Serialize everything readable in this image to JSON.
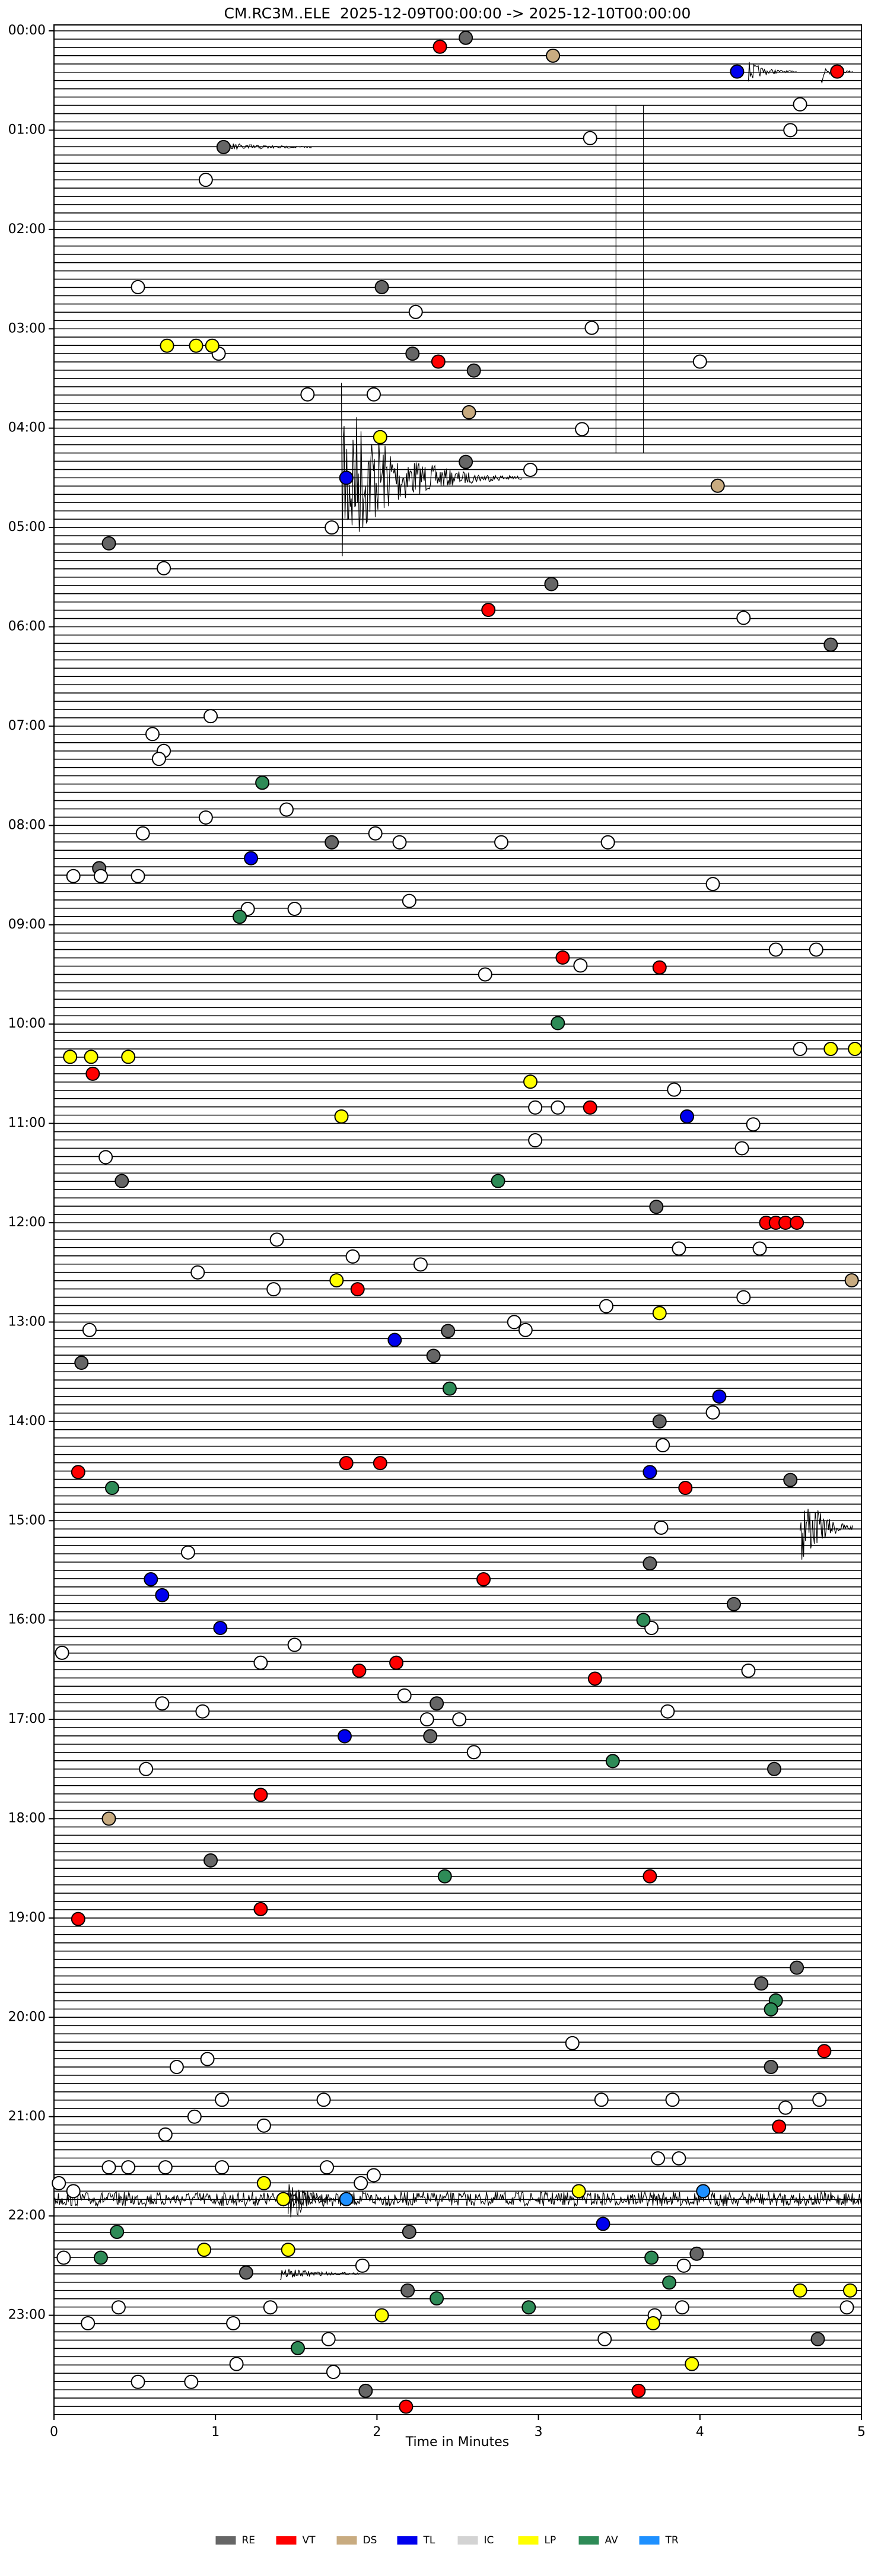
{
  "chart_data": {
    "type": "helicorder",
    "title": "CM.RC3M..ELE  2025-12-09T00:00:00 -> 2025-12-10T00:00:00",
    "xlabel": "Time in Minutes",
    "xlim": [
      0,
      5
    ],
    "xticks": [
      0,
      1,
      2,
      3,
      4,
      5
    ],
    "ylim": [
      24,
      0
    ],
    "yticks": [
      {
        "value": 0,
        "label": "00:00"
      },
      {
        "value": 1,
        "label": "01:00"
      },
      {
        "value": 2,
        "label": "02:00"
      },
      {
        "value": 3,
        "label": "03:00"
      },
      {
        "value": 4,
        "label": "04:00"
      },
      {
        "value": 5,
        "label": "05:00"
      },
      {
        "value": 6,
        "label": "06:00"
      },
      {
        "value": 7,
        "label": "07:00"
      },
      {
        "value": 8,
        "label": "08:00"
      },
      {
        "value": 9,
        "label": "09:00"
      },
      {
        "value": 10,
        "label": "10:00"
      },
      {
        "value": 11,
        "label": "11:00"
      },
      {
        "value": 12,
        "label": "12:00"
      },
      {
        "value": 13,
        "label": "13:00"
      },
      {
        "value": 14,
        "label": "14:00"
      },
      {
        "value": 15,
        "label": "15:00"
      },
      {
        "value": 16,
        "label": "16:00"
      },
      {
        "value": 17,
        "label": "17:00"
      },
      {
        "value": 18,
        "label": "18:00"
      },
      {
        "value": 19,
        "label": "19:00"
      },
      {
        "value": 20,
        "label": "20:00"
      },
      {
        "value": 21,
        "label": "21:00"
      },
      {
        "value": 22,
        "label": "22:00"
      },
      {
        "value": 23,
        "label": "23:00"
      }
    ],
    "legend": "bottom",
    "series": [
      {
        "name": "RE",
        "color": "#666666",
        "x": [
          2.55,
          1.05,
          2.03,
          2.22,
          2.6,
          2.55,
          0.34,
          3.08,
          4.81,
          1.72,
          0.28,
          0.42,
          3.73,
          2.44,
          2.35,
          0.17,
          3.75,
          4.56,
          3.69,
          4.21,
          2.37,
          2.33,
          4.46,
          0.97,
          4.6,
          4.38,
          4.44,
          2.19,
          1.19,
          3.98,
          4.73,
          1.93,
          2.2
        ],
        "y": [
          0.07,
          1.17,
          2.58,
          3.25,
          3.42,
          4.34,
          5.16,
          5.57,
          6.18,
          8.17,
          8.43,
          11.58,
          11.84,
          13.09,
          13.34,
          13.41,
          14.0,
          14.59,
          15.43,
          15.84,
          16.84,
          17.17,
          17.5,
          18.42,
          19.5,
          19.66,
          20.5,
          22.75,
          22.57,
          22.38,
          23.24,
          23.76,
          22.16
        ]
      },
      {
        "name": "VT",
        "color": "#ff0000",
        "x": [
          2.39,
          4.85,
          2.38,
          2.69,
          3.15,
          3.75,
          0.24,
          3.32,
          4.41,
          4.47,
          4.53,
          4.6,
          1.88,
          1.81,
          2.02,
          0.15,
          3.91,
          2.66,
          2.12,
          1.89,
          3.35,
          1.28,
          1.28,
          0.15,
          3.69,
          4.77,
          4.49,
          2.18,
          3.62
        ],
        "y": [
          0.16,
          0.41,
          3.33,
          5.83,
          9.33,
          9.43,
          10.5,
          10.84,
          12.0,
          12.0,
          12.0,
          12.0,
          12.67,
          14.42,
          14.42,
          14.51,
          14.67,
          15.59,
          16.43,
          16.51,
          16.59,
          17.76,
          18.91,
          19.01,
          18.58,
          20.34,
          21.1,
          23.92,
          23.76
        ]
      },
      {
        "name": "DS",
        "color": "#c8ab80",
        "x": [
          3.09,
          2.57,
          4.11,
          4.94,
          0.34
        ],
        "y": [
          0.25,
          3.84,
          4.58,
          12.58,
          18.0
        ]
      },
      {
        "name": "TL",
        "color": "#0000ee",
        "x": [
          4.23,
          1.81,
          1.22,
          3.92,
          2.11,
          4.12,
          3.69,
          0.6,
          0.67,
          1.03,
          1.8,
          3.4
        ],
        "y": [
          0.41,
          4.5,
          8.33,
          10.93,
          13.18,
          13.75,
          14.51,
          15.59,
          15.75,
          16.08,
          17.17,
          22.08
        ]
      },
      {
        "name": "IC",
        "color": "#ffffff",
        "x": [
          4.62,
          4.56,
          3.32,
          0.94,
          0.52,
          2.24,
          3.33,
          1.02,
          4.0,
          1.57,
          1.98,
          3.27,
          2.95,
          1.72,
          0.68,
          4.27,
          0.97,
          0.61,
          0.68,
          0.65,
          1.44,
          0.94,
          0.55,
          1.99,
          2.14,
          2.77,
          3.43,
          0.12,
          0.29,
          0.52,
          4.08,
          2.2,
          1.2,
          1.49,
          4.47,
          4.72,
          3.26,
          2.67,
          4.62,
          3.84,
          2.98,
          3.12,
          4.33,
          2.98,
          4.26,
          0.32,
          1.38,
          3.87,
          4.37,
          1.85,
          2.27,
          0.89,
          1.36,
          4.27,
          3.42,
          2.85,
          2.92,
          0.22,
          4.08,
          3.77,
          3.76,
          0.83,
          3.7,
          0.05,
          1.49,
          1.28,
          4.3,
          2.17,
          0.67,
          0.92,
          3.8,
          2.31,
          2.51,
          2.6,
          0.57,
          3.21,
          0.95,
          0.76,
          1.04,
          1.67,
          3.39,
          3.83,
          4.74,
          4.53,
          0.87,
          1.3,
          0.69,
          3.74,
          3.87,
          0.34,
          0.46,
          0.69,
          1.04,
          1.69,
          1.98,
          0.03,
          1.9,
          0.12,
          0.06,
          1.91,
          3.9,
          0.4,
          1.34,
          3.89,
          4.91,
          1.11,
          0.21,
          3.72,
          1.7,
          3.41,
          1.13,
          1.73,
          0.52,
          0.85
        ],
        "y": [
          0.74,
          1.0,
          1.08,
          1.5,
          2.58,
          2.83,
          2.99,
          3.25,
          3.33,
          3.66,
          3.66,
          4.01,
          4.42,
          5.0,
          5.41,
          5.91,
          6.9,
          7.08,
          7.25,
          7.33,
          7.84,
          7.92,
          8.08,
          8.08,
          8.17,
          8.17,
          8.17,
          8.51,
          8.51,
          8.51,
          8.59,
          8.76,
          8.84,
          8.84,
          9.25,
          9.25,
          9.41,
          9.5,
          10.25,
          10.66,
          10.84,
          10.84,
          11.01,
          11.17,
          11.25,
          11.34,
          12.17,
          12.26,
          12.26,
          12.34,
          12.42,
          12.5,
          12.67,
          12.75,
          12.84,
          13.0,
          13.08,
          13.08,
          13.91,
          14.24,
          15.07,
          15.32,
          16.08,
          16.33,
          16.25,
          16.43,
          16.51,
          16.76,
          16.84,
          16.92,
          16.92,
          17.0,
          17.0,
          17.33,
          17.5,
          20.26,
          20.42,
          20.5,
          20.83,
          20.83,
          20.83,
          20.83,
          20.83,
          20.91,
          21.0,
          21.09,
          21.18,
          21.42,
          21.42,
          21.51,
          21.51,
          21.51,
          21.51,
          21.51,
          21.59,
          21.67,
          21.67,
          21.75,
          22.42,
          22.5,
          22.5,
          22.92,
          22.92,
          22.92,
          22.92,
          23.08,
          23.08,
          23.0,
          23.24,
          23.24,
          23.49,
          23.57,
          23.67,
          23.67
        ]
      },
      {
        "name": "LP",
        "color": "#ffff00",
        "x": [
          0.7,
          0.88,
          0.98,
          2.02,
          0.1,
          0.23,
          0.46,
          4.81,
          4.96,
          2.95,
          1.78,
          1.75,
          3.75,
          1.3,
          1.42,
          3.25,
          0.93,
          1.45,
          4.62,
          4.93,
          2.03,
          3.71,
          3.95
        ],
        "y": [
          3.17,
          3.17,
          3.17,
          4.09,
          10.33,
          10.33,
          10.33,
          10.25,
          10.25,
          10.58,
          10.93,
          12.58,
          12.91,
          21.67,
          21.83,
          21.75,
          22.34,
          22.34,
          22.75,
          22.75,
          23.0,
          23.08,
          23.49
        ]
      },
      {
        "name": "AV",
        "color": "#2e8b57",
        "x": [
          1.29,
          1.15,
          3.12,
          2.75,
          2.45,
          0.36,
          3.65,
          3.46,
          2.42,
          4.47,
          4.44,
          0.39,
          0.29,
          3.7,
          3.81,
          2.37,
          2.94,
          1.51
        ],
        "y": [
          7.57,
          8.92,
          9.99,
          11.58,
          13.67,
          14.67,
          16.0,
          17.42,
          18.58,
          19.83,
          19.92,
          22.16,
          22.42,
          22.42,
          22.67,
          22.83,
          22.92,
          23.33
        ]
      },
      {
        "name": "TR",
        "color": "#1e90ff",
        "x": [
          4.02,
          1.81
        ],
        "y": [
          21.75,
          21.83
        ]
      }
    ]
  }
}
